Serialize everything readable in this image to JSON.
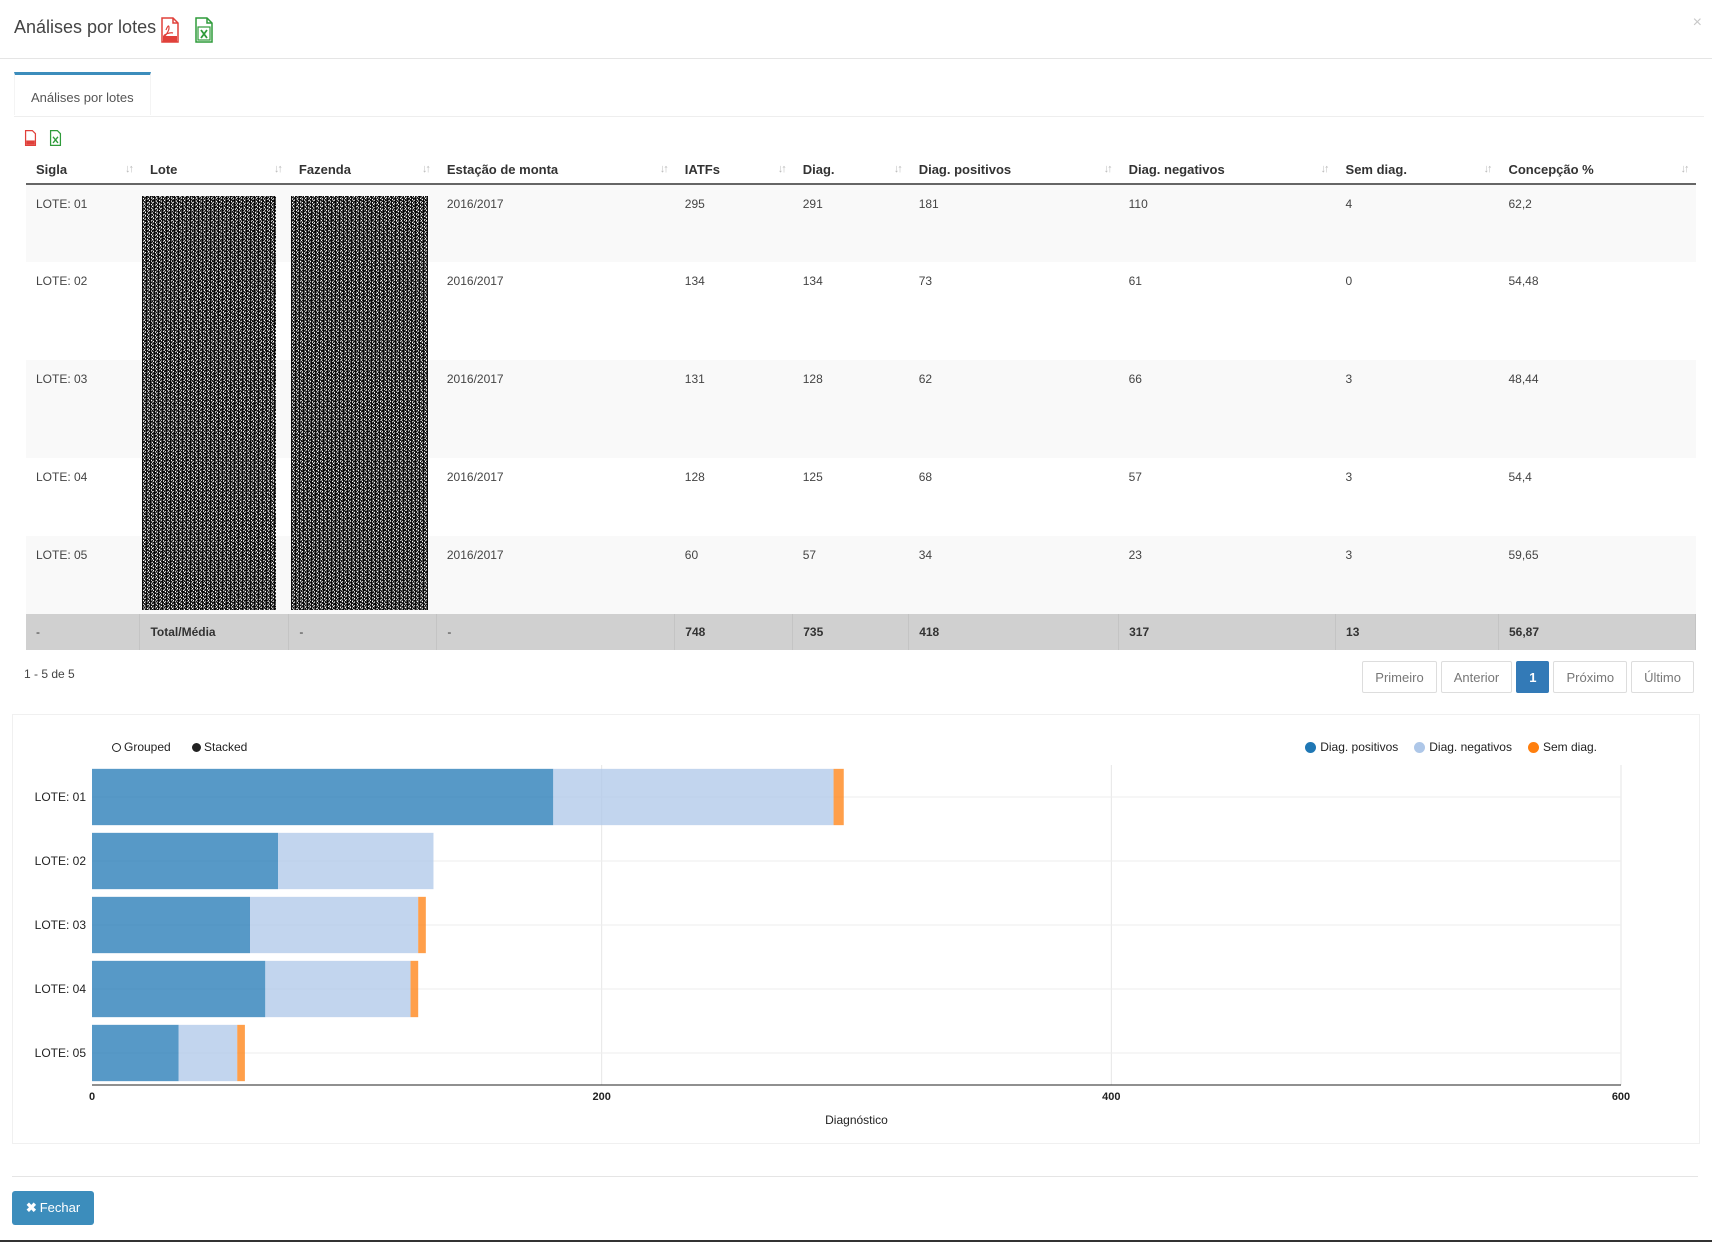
{
  "modal": {
    "title": "Análises por lotes",
    "pdf_icon": "pdf-file-icon",
    "excel_icon": "excel-file-icon",
    "close": "×"
  },
  "tabs": [
    {
      "label": "Análises por lotes",
      "active": true
    }
  ],
  "table": {
    "columns": [
      "Sigla",
      "Lote",
      "Fazenda",
      "Estação de monta",
      "IATFs",
      "Diag.",
      "Diag. positivos",
      "Diag. negativos",
      "Sem diag.",
      "Concepção %"
    ],
    "rows": [
      [
        "LOTE: 01",
        "",
        "",
        "2016/2017",
        "295",
        "291",
        "181",
        "110",
        "4",
        "62,2"
      ],
      [
        "LOTE: 02",
        "",
        "",
        "2016/2017",
        "134",
        "134",
        "73",
        "61",
        "0",
        "54,48"
      ],
      [
        "LOTE: 03",
        "",
        "",
        "2016/2017",
        "131",
        "128",
        "62",
        "66",
        "3",
        "48,44"
      ],
      [
        "LOTE: 04",
        "",
        "",
        "2016/2017",
        "128",
        "125",
        "68",
        "57",
        "3",
        "54,4"
      ],
      [
        "LOTE: 05",
        "",
        "",
        "2016/2017",
        "60",
        "57",
        "34",
        "23",
        "3",
        "59,65"
      ]
    ],
    "footer": [
      "-",
      "Total/Média",
      "-",
      "-",
      "748",
      "735",
      "418",
      "317",
      "13",
      "56,87"
    ]
  },
  "pagination": {
    "info": "1 - 5 de 5",
    "first": "Primeiro",
    "prev": "Anterior",
    "current": "1",
    "next": "Próximo",
    "last": "Último"
  },
  "chart_controls": {
    "grouped": "Grouped",
    "stacked": "Stacked",
    "selected": "stacked"
  },
  "chart_data": {
    "type": "bar",
    "orientation": "horizontal",
    "stacked": true,
    "categories": [
      "LOTE: 01",
      "LOTE: 02",
      "LOTE: 03",
      "LOTE: 04",
      "LOTE: 05"
    ],
    "series": [
      {
        "name": "Diag. positivos",
        "values": [
          181,
          73,
          62,
          68,
          34
        ],
        "color": "#1f77b4"
      },
      {
        "name": "Diag. negativos",
        "values": [
          110,
          61,
          66,
          57,
          23
        ],
        "color": "#aec7e8"
      },
      {
        "name": "Sem diag.",
        "values": [
          4,
          0,
          3,
          3,
          3
        ],
        "color": "#ff7f0e"
      }
    ],
    "xlabel": "Diagnóstico",
    "xlim": [
      0,
      600
    ],
    "xticks": [
      "0",
      "200",
      "400",
      "600"
    ],
    "grid": true,
    "legend_position": "top-right"
  },
  "actions": {
    "close_label": "Fechar"
  }
}
